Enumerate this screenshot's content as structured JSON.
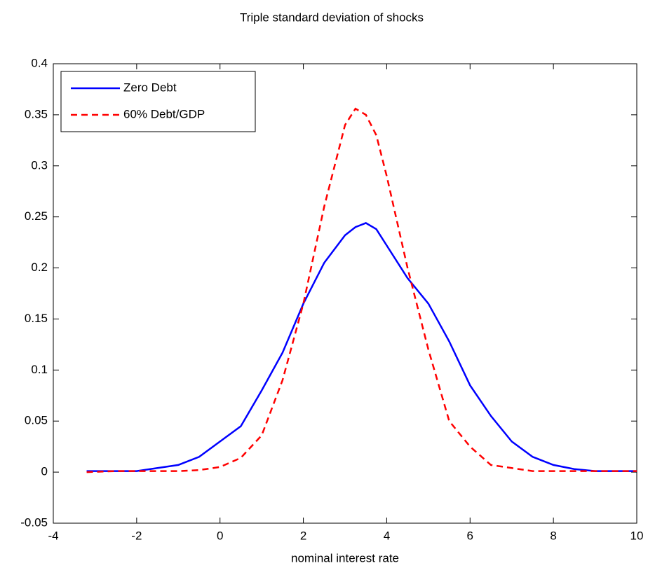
{
  "chart_data": {
    "type": "line",
    "title": "Triple standard deviation of shocks",
    "x_label": "nominal interest rate",
    "x": [
      -3.2,
      -2.5,
      -2,
      -1.5,
      -1,
      -0.5,
      0,
      0.5,
      1,
      1.5,
      2,
      2.5,
      3,
      3.25,
      3.5,
      3.75,
      4,
      4.5,
      5,
      5.5,
      6,
      6.5,
      7,
      7.5,
      8,
      8.5,
      9,
      10
    ],
    "series": [
      {
        "name": "Zero Debt",
        "color": "#0000ff",
        "dash": "solid",
        "values": [
          0.001,
          0.001,
          0.001,
          0.004,
          0.007,
          0.015,
          0.03,
          0.045,
          0.08,
          0.117,
          0.165,
          0.205,
          0.232,
          0.24,
          0.244,
          0.238,
          0.222,
          0.19,
          0.165,
          0.128,
          0.085,
          0.055,
          0.03,
          0.015,
          0.007,
          0.003,
          0.001,
          0.001
        ]
      },
      {
        "name": "60% Debt/GDP",
        "color": "#ff0000",
        "dash": "dashed",
        "values": [
          0,
          0.001,
          0.001,
          0.001,
          0.001,
          0.002,
          0.005,
          0.014,
          0.036,
          0.09,
          0.165,
          0.26,
          0.34,
          0.356,
          0.35,
          0.33,
          0.29,
          0.2,
          0.12,
          0.05,
          0.025,
          0.007,
          0.004,
          0.001,
          0.001,
          0.001,
          0.001,
          0.001
        ]
      }
    ],
    "xlim": [
      -4,
      10
    ],
    "xticks": [
      -4,
      -2,
      0,
      2,
      4,
      6,
      8,
      10
    ],
    "ylim": [
      -0.05,
      0.4
    ],
    "yticks": [
      -0.05,
      0,
      0.05,
      0.1,
      0.15,
      0.2,
      0.25,
      0.3,
      0.35,
      0.4
    ],
    "legend_position": "upper left",
    "grid": false
  }
}
